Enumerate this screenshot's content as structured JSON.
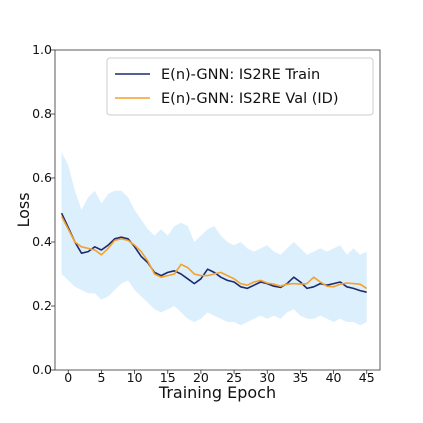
{
  "chart_data": {
    "type": "line",
    "xlabel": "Training Epoch",
    "ylabel": "Loss",
    "xlim": [
      -2,
      47
    ],
    "ylim": [
      0.0,
      1.0
    ],
    "x_ticks": [
      0,
      5,
      10,
      15,
      20,
      25,
      30,
      35,
      40,
      45
    ],
    "y_ticks": [
      0.0,
      0.2,
      0.4,
      0.6,
      0.8,
      1.0
    ],
    "x_tick_labels": [
      "0",
      "5",
      "10",
      "15",
      "20",
      "25",
      "30",
      "35",
      "40",
      "45"
    ],
    "y_tick_labels": [
      "0.0",
      "0.2",
      "0.4",
      "0.6",
      "0.8",
      "1.0"
    ],
    "grid": false,
    "legend_position": "top-right",
    "x": [
      -1,
      0,
      1,
      2,
      3,
      4,
      5,
      6,
      7,
      8,
      9,
      10,
      11,
      12,
      13,
      14,
      15,
      16,
      17,
      18,
      19,
      20,
      21,
      22,
      23,
      24,
      25,
      26,
      27,
      28,
      29,
      30,
      31,
      32,
      33,
      34,
      35,
      36,
      37,
      38,
      39,
      40,
      41,
      42,
      43,
      44,
      45
    ],
    "series": [
      {
        "name": "E(n)-GNN: IS2RE Train",
        "color": "#1f2a6e",
        "values": [
          0.49,
          0.445,
          0.4,
          0.365,
          0.37,
          0.385,
          0.375,
          0.39,
          0.41,
          0.415,
          0.41,
          0.385,
          0.355,
          0.335,
          0.305,
          0.295,
          0.305,
          0.31,
          0.3,
          0.285,
          0.27,
          0.285,
          0.315,
          0.305,
          0.29,
          0.28,
          0.275,
          0.26,
          0.255,
          0.265,
          0.275,
          0.27,
          0.262,
          0.258,
          0.27,
          0.29,
          0.275,
          0.255,
          0.26,
          0.27,
          0.265,
          0.27,
          0.275,
          0.26,
          0.255,
          0.248,
          0.243
        ]
      },
      {
        "name": "E(n)-GNN: IS2RE Val (ID)",
        "color": "#f5a12d",
        "values": [
          0.48,
          0.44,
          0.4,
          0.385,
          0.38,
          0.375,
          0.36,
          0.38,
          0.405,
          0.41,
          0.405,
          0.39,
          0.37,
          0.34,
          0.3,
          0.29,
          0.295,
          0.3,
          0.33,
          0.32,
          0.3,
          0.295,
          0.295,
          0.3,
          0.305,
          0.295,
          0.285,
          0.27,
          0.265,
          0.275,
          0.28,
          0.272,
          0.268,
          0.262,
          0.268,
          0.27,
          0.268,
          0.27,
          0.29,
          0.275,
          0.262,
          0.26,
          0.268,
          0.272,
          0.27,
          0.268,
          0.255
        ]
      }
    ],
    "band": {
      "color": "#dbeffc",
      "upper": [
        0.68,
        0.64,
        0.56,
        0.5,
        0.54,
        0.56,
        0.52,
        0.55,
        0.56,
        0.56,
        0.54,
        0.5,
        0.47,
        0.44,
        0.42,
        0.44,
        0.42,
        0.45,
        0.46,
        0.45,
        0.4,
        0.42,
        0.44,
        0.45,
        0.42,
        0.4,
        0.39,
        0.4,
        0.38,
        0.37,
        0.38,
        0.39,
        0.37,
        0.36,
        0.38,
        0.4,
        0.38,
        0.36,
        0.37,
        0.38,
        0.37,
        0.38,
        0.39,
        0.36,
        0.38,
        0.36,
        0.37
      ],
      "lower": [
        0.3,
        0.28,
        0.26,
        0.25,
        0.24,
        0.24,
        0.22,
        0.23,
        0.25,
        0.27,
        0.28,
        0.25,
        0.23,
        0.21,
        0.19,
        0.18,
        0.19,
        0.2,
        0.18,
        0.16,
        0.15,
        0.16,
        0.18,
        0.17,
        0.16,
        0.15,
        0.15,
        0.14,
        0.15,
        0.16,
        0.17,
        0.16,
        0.17,
        0.16,
        0.18,
        0.19,
        0.17,
        0.16,
        0.16,
        0.17,
        0.16,
        0.15,
        0.16,
        0.15,
        0.15,
        0.14,
        0.15
      ]
    }
  }
}
